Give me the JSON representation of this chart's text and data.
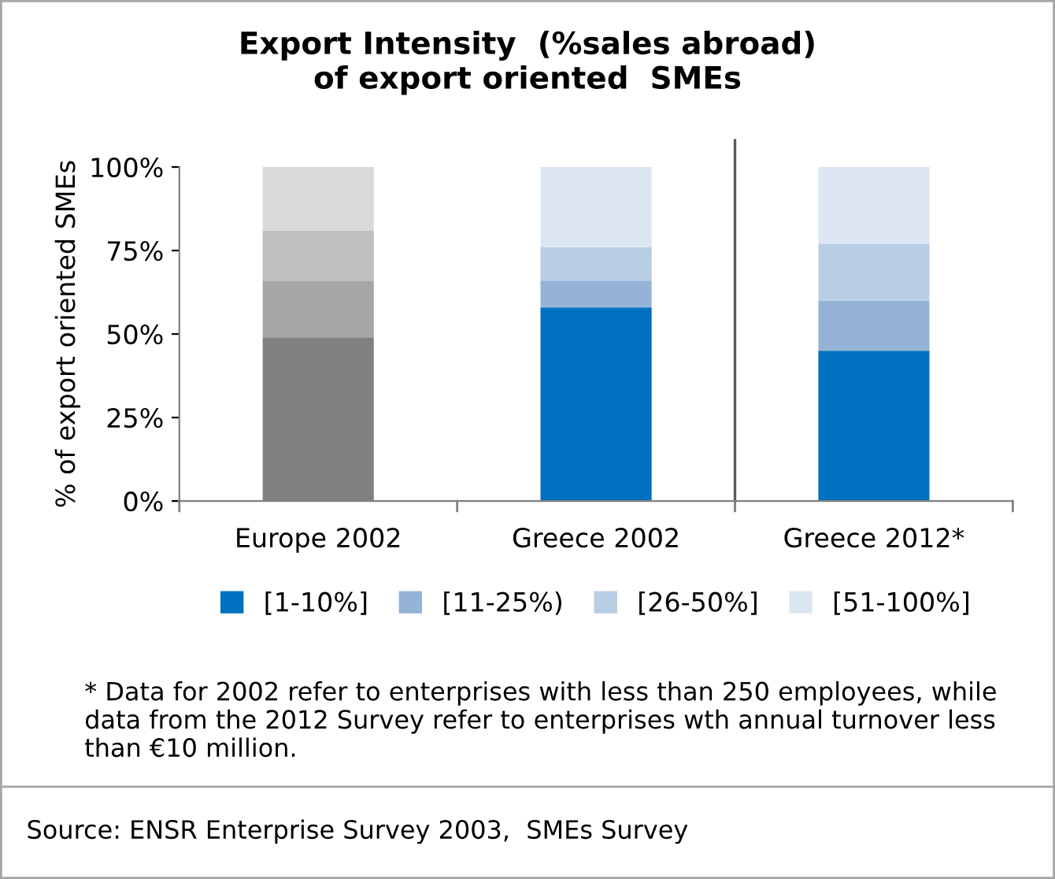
{
  "chart_data": {
    "type": "bar",
    "stacked": true,
    "title": "Export Intensity  (%sales abroad)\nof export oriented  SMEs",
    "ylabel": "% of export oriented SMEs",
    "categories": [
      "Europe 2002",
      "Greece 2002",
      "Greece 2012*"
    ],
    "series": [
      {
        "name": "[1-10%]",
        "color": "#0070c0",
        "colors": [
          "#808080",
          "#0070c0",
          "#0070c0"
        ],
        "values": [
          49,
          58,
          45
        ]
      },
      {
        "name": "[11-25%)",
        "color": "#95b3d7",
        "colors": [
          "#a6a6a6",
          "#95b3d7",
          "#95b3d7"
        ],
        "values": [
          17,
          8,
          15
        ]
      },
      {
        "name": "[26-50%]",
        "color": "#b9cde5",
        "colors": [
          "#bfbfbf",
          "#b9cde5",
          "#b9cde5"
        ],
        "values": [
          15,
          10,
          17
        ]
      },
      {
        "name": "[51-100%]",
        "color": "#dce6f2",
        "colors": [
          "#d9d9d9",
          "#dce6f2",
          "#dce6f2"
        ],
        "values": [
          19,
          24,
          23
        ]
      }
    ],
    "ylim": [
      0,
      100
    ],
    "yticks": [
      {
        "value": 0,
        "label": "0%"
      },
      {
        "value": 25,
        "label": "25%"
      },
      {
        "value": 50,
        "label": "50%"
      },
      {
        "value": 75,
        "label": "75%"
      },
      {
        "value": 100,
        "label": "100%"
      }
    ],
    "grid": false,
    "legend": "bottom",
    "annotations": [
      "* Data for 2002 refer to enterprises with less than 250 employees, while data from the 2012 Survey refer to enterprises wth annual turnover less than €10 million.",
      "Source: ENSR Enterprise Survey 2003,  SMEs Survey"
    ]
  }
}
